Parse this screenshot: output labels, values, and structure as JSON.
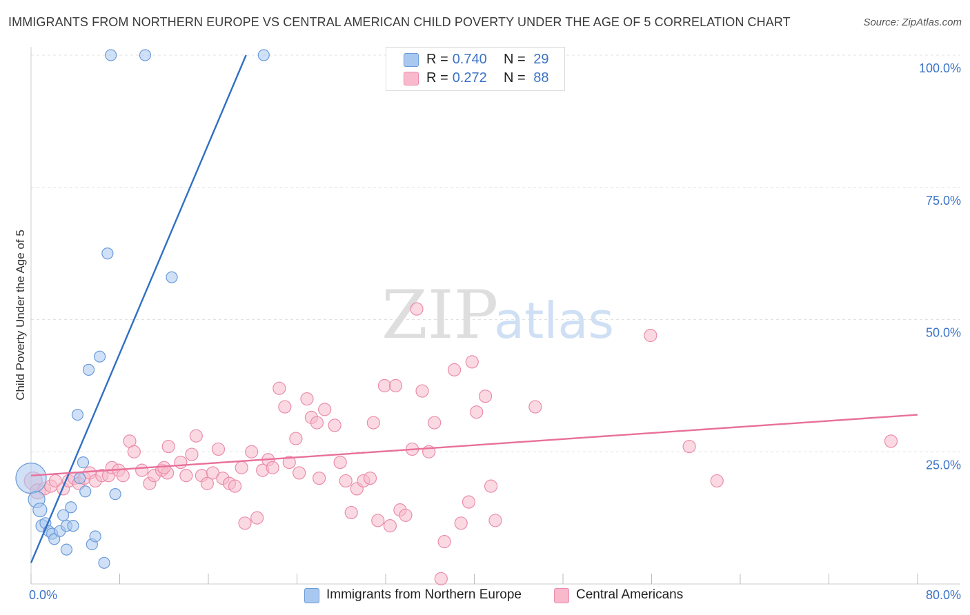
{
  "title": "IMMIGRANTS FROM NORTHERN EUROPE VS CENTRAL AMERICAN CHILD POVERTY UNDER THE AGE OF 5 CORRELATION CHART",
  "source": "Source: ZipAtlas.com",
  "watermark": {
    "zip": "ZIP",
    "atlas": "atlas"
  },
  "legend": {
    "series1": {
      "r_label": "R =",
      "r_value": "0.740",
      "n_label": "N =",
      "n_value": "29"
    },
    "series2": {
      "r_label": "R =",
      "r_value": "0.272",
      "n_label": "N =",
      "n_value": "88"
    }
  },
  "colors": {
    "blue_fill": "#a9c8f0",
    "blue_stroke": "#6b9bd8",
    "blue_line": "#2f6fc4",
    "pink_fill": "#f7b9cb",
    "pink_stroke": "#ea8cab",
    "pink_line": "#e8709a",
    "tick_text": "#3b73c8",
    "grid": "#e0e0e0"
  },
  "chart_data": {
    "type": "scatter",
    "title": "IMMIGRANTS FROM NORTHERN EUROPE VS CENTRAL AMERICAN CHILD POVERTY UNDER THE AGE OF 5 CORRELATION CHART",
    "xlabel": "",
    "ylabel": "Child Poverty Under the Age of 5",
    "xlim": [
      0,
      80
    ],
    "ylim": [
      0,
      100
    ],
    "x_tick_labels": [
      "0.0%",
      "80.0%"
    ],
    "y_ticks": [
      25,
      50,
      75,
      100
    ],
    "y_tick_labels": [
      "25.0%",
      "50.0%",
      "75.0%",
      "100.0%"
    ],
    "grid": true,
    "legend_position": "top-center",
    "series": [
      {
        "name": "Immigrants from Northern Europe",
        "color": "#a9c8f0",
        "trend": {
          "x": [
            0,
            19.4
          ],
          "y": [
            4,
            100
          ]
        },
        "points": [
          [
            0.0,
            20.0,
            22
          ],
          [
            0.5,
            16.0,
            12
          ],
          [
            0.8,
            14.0,
            10
          ],
          [
            1.0,
            11.0,
            9
          ],
          [
            1.3,
            11.5,
            8
          ],
          [
            1.6,
            10.0,
            8
          ],
          [
            1.9,
            9.5,
            8
          ],
          [
            2.1,
            8.5,
            8
          ],
          [
            2.6,
            10.0,
            8
          ],
          [
            2.9,
            13.0,
            8
          ],
          [
            3.2,
            11.0,
            8
          ],
          [
            3.2,
            6.5,
            8
          ],
          [
            3.6,
            14.5,
            8
          ],
          [
            3.8,
            11.0,
            8
          ],
          [
            4.2,
            32.0,
            8
          ],
          [
            4.4,
            20.0,
            8
          ],
          [
            4.7,
            23.0,
            8
          ],
          [
            4.9,
            17.5,
            8
          ],
          [
            5.5,
            7.5,
            8
          ],
          [
            5.8,
            9.0,
            8
          ],
          [
            6.2,
            43.0,
            8
          ],
          [
            6.6,
            4.0,
            8
          ],
          [
            6.9,
            62.5,
            8
          ],
          [
            7.6,
            17.0,
            8
          ],
          [
            7.2,
            100.0,
            8
          ],
          [
            10.3,
            100.0,
            8
          ],
          [
            12.7,
            58.0,
            8
          ],
          [
            21.0,
            100.0,
            8
          ],
          [
            5.2,
            40.5,
            8
          ]
        ]
      },
      {
        "name": "Central Americans",
        "color": "#f7b9cb",
        "trend": {
          "x": [
            0,
            80
          ],
          "y": [
            20.5,
            32
          ]
        },
        "points": [
          [
            0.2,
            19.5,
            13
          ],
          [
            0.6,
            17.5,
            11
          ],
          [
            1.2,
            18.0,
            9
          ],
          [
            1.8,
            18.5,
            9
          ],
          [
            2.2,
            19.5,
            9
          ],
          [
            2.9,
            18.0,
            9
          ],
          [
            3.4,
            19.5,
            9
          ],
          [
            3.9,
            20.0,
            9
          ],
          [
            4.3,
            19.0,
            9
          ],
          [
            4.8,
            20.0,
            9
          ],
          [
            5.3,
            21.0,
            9
          ],
          [
            5.8,
            19.5,
            9
          ],
          [
            6.4,
            20.5,
            9
          ],
          [
            7.0,
            20.5,
            9
          ],
          [
            7.3,
            22.0,
            9
          ],
          [
            7.9,
            21.5,
            9
          ],
          [
            8.3,
            20.5,
            9
          ],
          [
            8.9,
            27.0,
            9
          ],
          [
            9.3,
            25.0,
            9
          ],
          [
            10.0,
            21.5,
            9
          ],
          [
            10.7,
            19.0,
            9
          ],
          [
            11.1,
            20.5,
            9
          ],
          [
            11.8,
            21.5,
            9
          ],
          [
            12.3,
            21.0,
            9
          ],
          [
            12.4,
            26.0,
            9
          ],
          [
            13.5,
            23.0,
            9
          ],
          [
            14.0,
            20.5,
            9
          ],
          [
            14.5,
            24.5,
            9
          ],
          [
            14.9,
            28.0,
            9
          ],
          [
            15.4,
            20.5,
            9
          ],
          [
            15.9,
            19.0,
            9
          ],
          [
            16.4,
            21.0,
            9
          ],
          [
            16.9,
            25.5,
            9
          ],
          [
            17.3,
            20.0,
            9
          ],
          [
            17.9,
            19.0,
            9
          ],
          [
            18.4,
            18.5,
            9
          ],
          [
            19.0,
            22.0,
            9
          ],
          [
            19.3,
            11.5,
            9
          ],
          [
            19.9,
            25.0,
            9
          ],
          [
            20.4,
            12.5,
            9
          ],
          [
            20.9,
            21.5,
            9
          ],
          [
            21.4,
            23.5,
            9
          ],
          [
            21.8,
            22.0,
            9
          ],
          [
            22.4,
            37.0,
            9
          ],
          [
            22.9,
            33.5,
            9
          ],
          [
            23.3,
            23.0,
            9
          ],
          [
            23.9,
            27.5,
            9
          ],
          [
            24.2,
            21.0,
            9
          ],
          [
            24.9,
            35.0,
            9
          ],
          [
            25.3,
            31.5,
            9
          ],
          [
            25.8,
            30.5,
            9
          ],
          [
            26.5,
            33.0,
            9
          ],
          [
            27.4,
            30.0,
            9
          ],
          [
            27.9,
            23.0,
            9
          ],
          [
            28.4,
            19.5,
            9
          ],
          [
            28.9,
            13.5,
            9
          ],
          [
            29.4,
            18.0,
            9
          ],
          [
            30.0,
            19.5,
            9
          ],
          [
            30.6,
            20.0,
            9
          ],
          [
            30.9,
            30.5,
            9
          ],
          [
            31.3,
            12.0,
            9
          ],
          [
            31.9,
            37.5,
            9
          ],
          [
            32.4,
            11.0,
            9
          ],
          [
            32.9,
            37.5,
            9
          ],
          [
            33.3,
            14.0,
            9
          ],
          [
            33.8,
            13.0,
            9
          ],
          [
            34.4,
            25.5,
            9
          ],
          [
            34.8,
            52.0,
            9
          ],
          [
            35.3,
            36.5,
            9
          ],
          [
            35.9,
            25.0,
            9
          ],
          [
            36.4,
            30.5,
            9
          ],
          [
            37.3,
            8.0,
            9
          ],
          [
            37.0,
            1.0,
            9
          ],
          [
            38.2,
            40.5,
            9
          ],
          [
            38.8,
            11.5,
            9
          ],
          [
            39.5,
            15.5,
            9
          ],
          [
            39.8,
            42.0,
            9
          ],
          [
            40.2,
            32.5,
            9
          ],
          [
            41.0,
            35.5,
            9
          ],
          [
            41.5,
            18.5,
            9
          ],
          [
            41.9,
            12.0,
            9
          ],
          [
            45.5,
            33.5,
            9
          ],
          [
            55.9,
            47.0,
            9
          ],
          [
            59.4,
            26.0,
            9
          ],
          [
            61.9,
            19.5,
            9
          ],
          [
            77.6,
            27.0,
            9
          ],
          [
            12.0,
            22.0,
            9
          ],
          [
            26.0,
            20.0,
            9
          ]
        ]
      }
    ]
  }
}
